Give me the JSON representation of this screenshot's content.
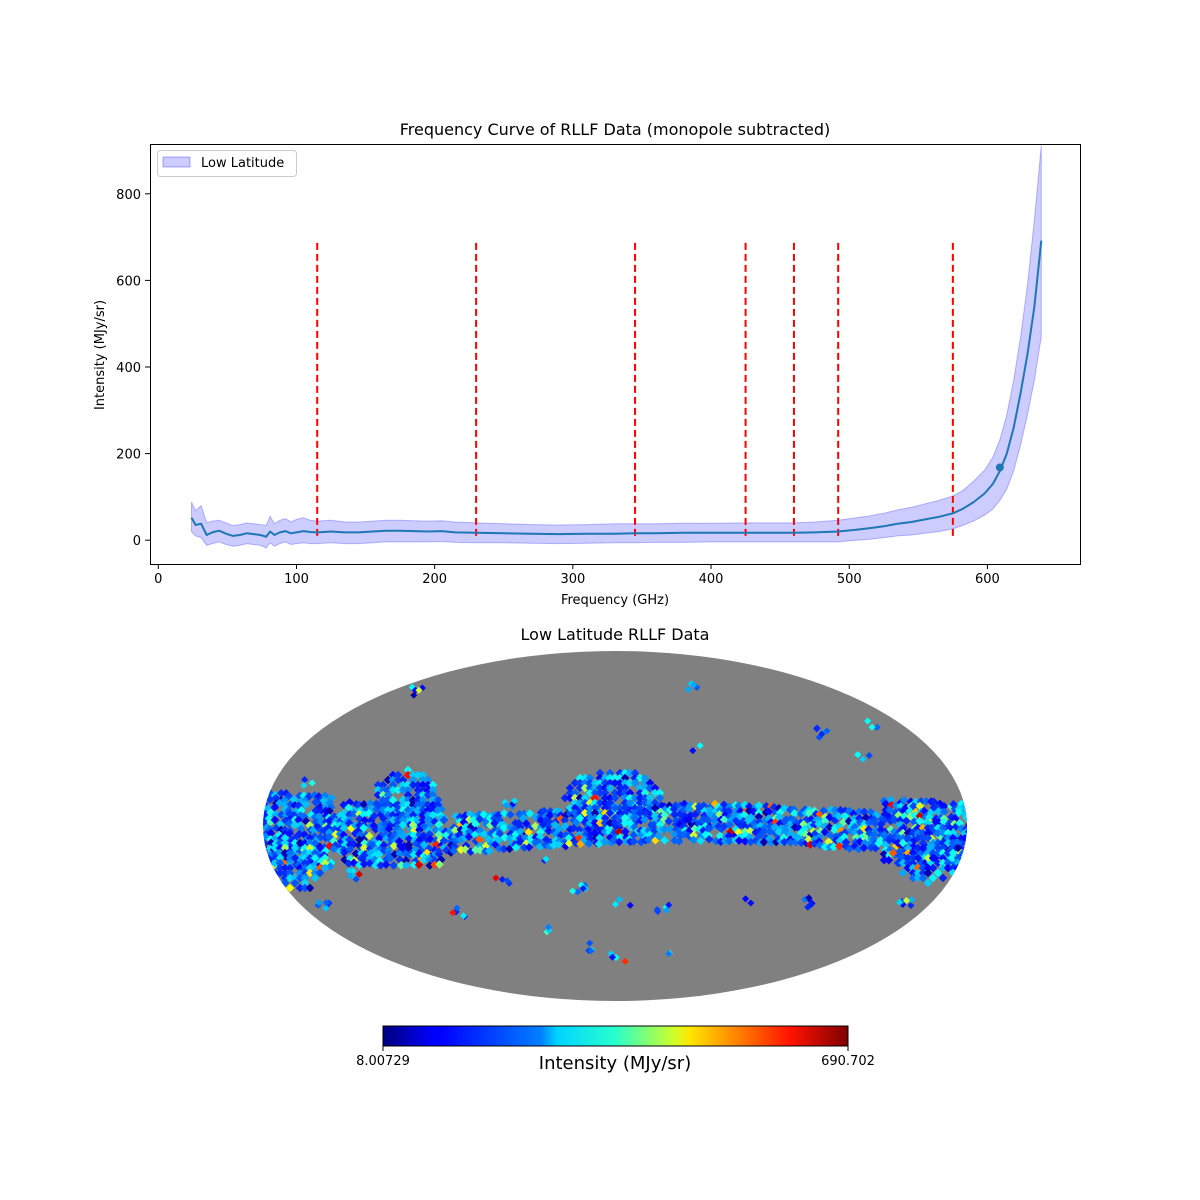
{
  "chart_data": [
    {
      "type": "line",
      "title": "Frequency Curve of RLLF Data (monopole subtracted)",
      "xlabel": "Frequency (GHz)",
      "ylabel": "Intensity (MJy/sr)",
      "xlim": [
        -6,
        667
      ],
      "ylim": [
        -55,
        915
      ],
      "xticks": [
        0,
        100,
        200,
        300,
        400,
        500,
        600
      ],
      "yticks": [
        0,
        200,
        400,
        600,
        800
      ],
      "xtick_labels": [
        "0",
        "100",
        "200",
        "300",
        "400",
        "500",
        "600"
      ],
      "ytick_labels": [
        "0",
        "200",
        "400",
        "600",
        "800"
      ],
      "legend": {
        "label": "Low Latitude",
        "location": "top-left"
      },
      "series": [
        {
          "name": "mean",
          "color": "#1f77b4",
          "x": [
            24,
            27,
            31,
            35,
            39,
            44,
            49,
            54,
            59,
            64,
            69,
            74,
            78,
            81,
            84,
            88,
            92,
            96,
            100,
            105,
            110,
            115,
            125,
            135,
            145,
            155,
            165,
            175,
            185,
            195,
            205,
            215,
            230,
            250,
            270,
            290,
            310,
            330,
            345,
            360,
            380,
            400,
            425,
            445,
            460,
            475,
            492,
            505,
            515,
            525,
            535,
            545,
            555,
            565,
            575,
            582,
            590,
            598,
            604,
            609,
            614,
            619,
            624,
            629,
            634,
            639
          ],
          "y": [
            52,
            35,
            38,
            12,
            18,
            22,
            15,
            10,
            12,
            16,
            14,
            12,
            8,
            20,
            12,
            18,
            21,
            16,
            18,
            21,
            19,
            18,
            20,
            18,
            18,
            20,
            22,
            22,
            21,
            20,
            21,
            18,
            17,
            16,
            15,
            14,
            15,
            15,
            16,
            16,
            17,
            17,
            17,
            17,
            17,
            18,
            20,
            24,
            28,
            32,
            38,
            42,
            48,
            54,
            62,
            72,
            88,
            108,
            130,
            160,
            200,
            260,
            340,
            430,
            540,
            692
          ]
        },
        {
          "name": "Low Latitude",
          "type": "band",
          "color": "#0000ff",
          "opacity": 0.2,
          "x": [
            24,
            27,
            31,
            35,
            39,
            44,
            49,
            54,
            59,
            64,
            69,
            74,
            78,
            81,
            84,
            88,
            92,
            96,
            100,
            105,
            110,
            115,
            125,
            135,
            145,
            155,
            165,
            175,
            185,
            195,
            205,
            215,
            230,
            250,
            270,
            290,
            310,
            330,
            345,
            360,
            380,
            400,
            425,
            445,
            460,
            475,
            492,
            505,
            515,
            525,
            535,
            545,
            555,
            565,
            575,
            582,
            590,
            598,
            604,
            609,
            614,
            619,
            624,
            629,
            634,
            639
          ],
          "upper": [
            88,
            68,
            80,
            40,
            44,
            46,
            40,
            34,
            36,
            40,
            38,
            36,
            34,
            55,
            38,
            46,
            50,
            42,
            48,
            52,
            46,
            44,
            46,
            42,
            42,
            44,
            46,
            46,
            45,
            44,
            45,
            42,
            40,
            38,
            36,
            35,
            36,
            38,
            38,
            38,
            39,
            39,
            40,
            40,
            40,
            42,
            46,
            52,
            56,
            62,
            70,
            76,
            84,
            92,
            102,
            114,
            136,
            162,
            192,
            232,
            290,
            370,
            470,
            590,
            740,
            912
          ],
          "lower": [
            20,
            10,
            6,
            -12,
            -8,
            -4,
            -10,
            -14,
            -12,
            -8,
            -10,
            -12,
            -18,
            -6,
            -14,
            -8,
            -4,
            -10,
            -8,
            -6,
            -8,
            -8,
            -6,
            -8,
            -8,
            -6,
            -4,
            -4,
            -4,
            -4,
            -3,
            -5,
            -6,
            -6,
            -7,
            -8,
            -7,
            -6,
            -6,
            -5,
            -5,
            -4,
            -4,
            -4,
            -4,
            -4,
            -4,
            0,
            2,
            6,
            10,
            12,
            16,
            20,
            26,
            34,
            44,
            58,
            72,
            92,
            118,
            160,
            220,
            290,
            370,
            470
          ]
        }
      ],
      "markers": [
        {
          "x": 609,
          "y": 168,
          "color": "#1f77b4"
        }
      ],
      "vlines": {
        "x": [
          115,
          230,
          345,
          425,
          460,
          492,
          575
        ],
        "ymin": 10,
        "ymax": 692,
        "color": "#ff0000",
        "style": "dashed"
      }
    },
    {
      "type": "heatmap",
      "title": "Low Latitude RLLF Data",
      "projection": "mollweide",
      "colormap": "jet",
      "masked_color": "#808080",
      "colorbar": {
        "label": "Intensity (MJy/sr)",
        "min": 8.00729,
        "max": 690.702,
        "min_label": "8.00729",
        "max_label": "690.702"
      }
    }
  ]
}
